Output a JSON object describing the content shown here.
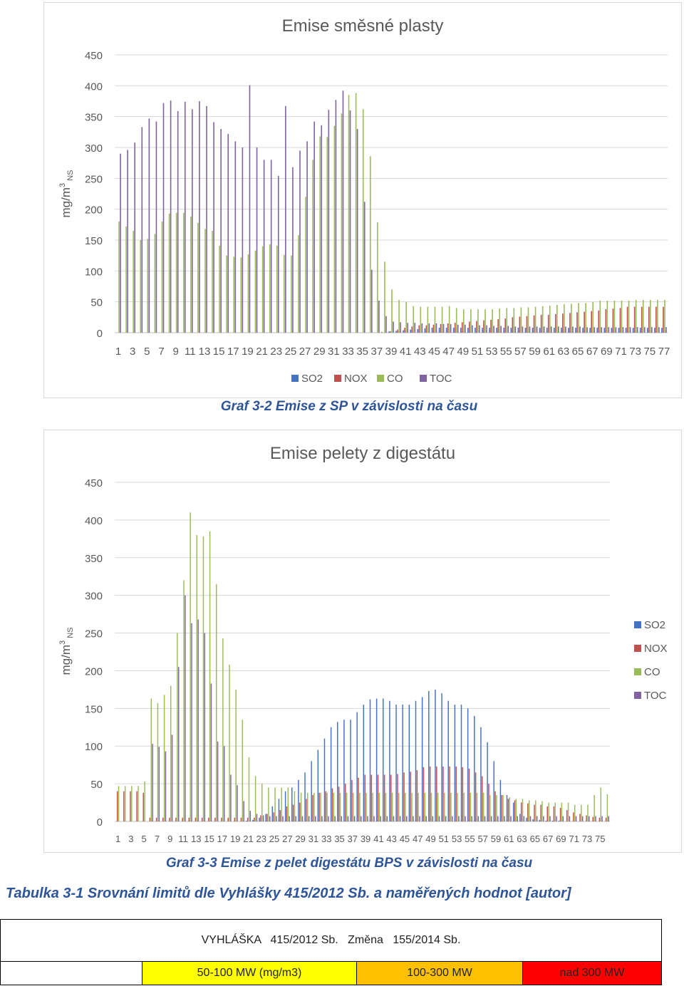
{
  "chart_data": [
    {
      "type": "bar",
      "title": "Emise směsné plasty",
      "ylabel": "mg/m3 NS",
      "ylim": [
        0,
        450
      ],
      "yticks": [
        "0",
        "50",
        "100",
        "150",
        "200",
        "250",
        "300",
        "350",
        "400",
        "450"
      ],
      "x_tick_labels": [
        "1",
        "3",
        "5",
        "7",
        "9",
        "11",
        "13",
        "15",
        "17",
        "19",
        "21",
        "23",
        "25",
        "27",
        "29",
        "31",
        "33",
        "35",
        "37",
        "39",
        "41",
        "43",
        "45",
        "47",
        "49",
        "51",
        "53",
        "55",
        "57",
        "59",
        "61",
        "63",
        "65",
        "67",
        "69",
        "71",
        "73",
        "75",
        "77"
      ],
      "categories": [
        1,
        2,
        3,
        4,
        5,
        6,
        7,
        8,
        9,
        10,
        11,
        12,
        13,
        14,
        15,
        16,
        17,
        18,
        19,
        20,
        21,
        22,
        23,
        24,
        25,
        26,
        27,
        28,
        29,
        30,
        31,
        32,
        33,
        34,
        35,
        36,
        37,
        38,
        39,
        40,
        41,
        42,
        43,
        44,
        45,
        46,
        47,
        48,
        49,
        50,
        51,
        52,
        53,
        54,
        55,
        56,
        57,
        58,
        59,
        60,
        61,
        62,
        63,
        64,
        65,
        66,
        67,
        68,
        69,
        70,
        71,
        72,
        73,
        74,
        75,
        76,
        77
      ],
      "legend_position": "bottom",
      "gridlines": true,
      "series": [
        {
          "name": "SO2",
          "color": "#4472c4",
          "values": [
            0,
            0,
            0,
            0,
            0,
            0,
            0,
            0,
            0,
            0,
            0,
            0,
            0,
            0,
            0,
            0,
            0,
            0,
            0,
            0,
            0,
            0,
            0,
            0,
            0,
            0,
            0,
            0,
            0,
            0,
            0,
            0,
            0,
            0,
            0,
            0,
            0,
            1,
            2,
            3,
            4,
            5,
            6,
            7,
            8,
            8,
            8,
            8,
            8,
            8,
            8,
            8,
            8,
            8,
            8,
            8,
            8,
            8,
            8,
            8,
            8,
            8,
            8,
            8,
            8,
            8,
            8,
            8,
            8,
            8,
            8,
            8,
            8,
            8,
            8,
            8,
            8
          ]
        },
        {
          "name": "NOX",
          "color": "#c0504d",
          "values": [
            0,
            0,
            0,
            0,
            0,
            0,
            0,
            0,
            0,
            0,
            0,
            0,
            0,
            0,
            0,
            0,
            0,
            0,
            0,
            0,
            0,
            0,
            0,
            0,
            0,
            0,
            0,
            0,
            0,
            0,
            0,
            0,
            0,
            0,
            0,
            0,
            0,
            0,
            2,
            5,
            8,
            10,
            12,
            12,
            13,
            14,
            15,
            16,
            17,
            18,
            19,
            20,
            21,
            22,
            23,
            25,
            26,
            27,
            28,
            29,
            29,
            30,
            31,
            32,
            33,
            34,
            35,
            36,
            38,
            39,
            40,
            42,
            42,
            42,
            42,
            42,
            42
          ]
        },
        {
          "name": "CO",
          "color": "#9bbb59",
          "values": [
            180,
            172,
            165,
            150,
            152,
            160,
            180,
            193,
            194,
            194,
            188,
            178,
            168,
            165,
            141,
            125,
            123,
            122,
            127,
            133,
            140,
            143,
            141,
            126,
            125,
            158,
            220,
            280,
            318,
            317,
            335,
            355,
            385,
            388,
            362,
            286,
            179,
            115,
            70,
            53,
            50,
            43,
            42,
            42,
            42,
            42,
            43,
            40,
            38,
            38,
            38,
            38,
            38,
            39,
            40,
            40,
            41,
            41,
            42,
            43,
            44,
            45,
            46,
            47,
            48,
            48,
            50,
            52,
            52,
            52,
            52,
            52,
            53,
            53,
            53,
            53,
            53
          ]
        },
        {
          "name": "TOC",
          "color": "#8064a2",
          "values": [
            290,
            296,
            308,
            333,
            347,
            342,
            372,
            376,
            359,
            374,
            362,
            375,
            367,
            341,
            330,
            322,
            310,
            300,
            401,
            300,
            280,
            280,
            254,
            367,
            268,
            295,
            310,
            342,
            336,
            361,
            377,
            392,
            360,
            330,
            212,
            102,
            52,
            27,
            18,
            17,
            16,
            16,
            15,
            15,
            15,
            14,
            14,
            13,
            13,
            12,
            12,
            12,
            11,
            11,
            11,
            10,
            10,
            10,
            10,
            10,
            10,
            10,
            10,
            10,
            10,
            9,
            9,
            9,
            9,
            9,
            9,
            9,
            9,
            9,
            9,
            9,
            9
          ]
        }
      ]
    },
    {
      "type": "bar",
      "title": "Emise pelety z digestátu",
      "ylabel": "mg/m3 NS",
      "ylim": [
        0,
        450
      ],
      "yticks": [
        "0",
        "50",
        "100",
        "150",
        "200",
        "250",
        "300",
        "350",
        "400",
        "450"
      ],
      "x_tick_labels": [
        "1",
        "3",
        "5",
        "7",
        "9",
        "11",
        "13",
        "15",
        "17",
        "19",
        "21",
        "23",
        "25",
        "27",
        "29",
        "31",
        "33",
        "35",
        "37",
        "39",
        "41",
        "43",
        "45",
        "47",
        "49",
        "51",
        "53",
        "55",
        "57",
        "59",
        "61",
        "63",
        "65",
        "67",
        "69",
        "71",
        "73",
        "75"
      ],
      "categories": [
        1,
        2,
        3,
        4,
        5,
        6,
        7,
        8,
        9,
        10,
        11,
        12,
        13,
        14,
        15,
        16,
        17,
        18,
        19,
        20,
        21,
        22,
        23,
        24,
        25,
        26,
        27,
        28,
        29,
        30,
        31,
        32,
        33,
        34,
        35,
        36,
        37,
        38,
        39,
        40,
        41,
        42,
        43,
        44,
        45,
        46,
        47,
        48,
        49,
        50,
        51,
        52,
        53,
        54,
        55,
        56,
        57,
        58,
        59,
        60,
        61,
        62,
        63,
        64,
        65,
        66,
        67,
        68,
        69,
        70,
        71,
        72,
        73,
        74,
        75,
        76
      ],
      "legend_position": "right",
      "gridlines": true,
      "series": [
        {
          "name": "SO2",
          "color": "#4472c4",
          "values": [
            0,
            0,
            0,
            0,
            0,
            0,
            0,
            0,
            0,
            0,
            0,
            0,
            0,
            0,
            0,
            0,
            0,
            0,
            0,
            0,
            1,
            2,
            5,
            10,
            20,
            30,
            40,
            45,
            55,
            65,
            80,
            95,
            110,
            125,
            132,
            135,
            135,
            145,
            155,
            162,
            163,
            163,
            160,
            155,
            155,
            155,
            160,
            165,
            173,
            175,
            170,
            160,
            155,
            155,
            150,
            140,
            125,
            105,
            80,
            55,
            35,
            25,
            10,
            5,
            3,
            2,
            1,
            1,
            1,
            0,
            0,
            0,
            0,
            0,
            0,
            0
          ]
        },
        {
          "name": "NOX",
          "color": "#c0504d",
          "values": [
            40,
            40,
            40,
            40,
            38,
            5,
            5,
            5,
            5,
            5,
            5,
            5,
            5,
            5,
            5,
            5,
            5,
            5,
            5,
            5,
            5,
            5,
            8,
            10,
            12,
            15,
            20,
            22,
            25,
            30,
            35,
            38,
            40,
            44,
            46,
            50,
            55,
            58,
            62,
            62,
            62,
            62,
            62,
            63,
            65,
            66,
            68,
            72,
            73,
            73,
            73,
            73,
            73,
            72,
            70,
            65,
            60,
            50,
            40,
            35,
            30,
            28,
            25,
            24,
            22,
            22,
            20,
            20,
            18,
            15,
            12,
            10,
            8,
            6,
            5,
            5
          ]
        },
        {
          "name": "CO",
          "color": "#9bbb59",
          "values": [
            47,
            47,
            47,
            47,
            53,
            163,
            157,
            168,
            180,
            250,
            320,
            410,
            380,
            378,
            385,
            315,
            243,
            208,
            175,
            135,
            85,
            60,
            50,
            45,
            45,
            45,
            45,
            40,
            38,
            38,
            38,
            38,
            38,
            38,
            38,
            38,
            38,
            38,
            38,
            38,
            38,
            38,
            38,
            38,
            38,
            38,
            38,
            38,
            38,
            38,
            38,
            38,
            38,
            38,
            38,
            38,
            38,
            35,
            35,
            35,
            32,
            30,
            30,
            28,
            28,
            27,
            25,
            25,
            25,
            25,
            22,
            22,
            22,
            35,
            45,
            36
          ]
        },
        {
          "name": "TOC",
          "color": "#8064a2",
          "values": [
            0,
            0,
            0,
            0,
            0,
            103,
            99,
            93,
            115,
            205,
            300,
            263,
            268,
            250,
            183,
            106,
            100,
            62,
            48,
            27,
            14,
            10,
            8,
            7,
            7,
            7,
            7,
            7,
            7,
            7,
            7,
            7,
            7,
            7,
            7,
            7,
            7,
            7,
            7,
            7,
            7,
            7,
            7,
            7,
            7,
            7,
            7,
            7,
            7,
            7,
            7,
            7,
            7,
            7,
            7,
            7,
            7,
            7,
            7,
            7,
            7,
            7,
            7,
            7,
            7,
            7,
            7,
            7,
            7,
            7,
            7,
            7,
            7,
            7,
            7,
            7
          ]
        }
      ]
    }
  ],
  "captions": {
    "chart1": "Graf 3-2 Emise z SP v závislosti na času",
    "chart2": "Graf 3-3 Emise z pelet digestátu BPS v závislosti na času",
    "table": "Tabulka 3-1 Srovnání limitů dle Vyhlášky 415/2012 Sb. a naměřených hodnot [autor]"
  },
  "table": {
    "header": "VYHLÁŠKA   415/2012 Sb.   Změna   155/2014 Sb.",
    "bands": [
      {
        "label": "",
        "color": "#ffffff"
      },
      {
        "label": "50-100 MW (mg/m3)",
        "color": "#ffff00"
      },
      {
        "label": "100-300 MW",
        "color": "#ffc000"
      },
      {
        "label": "nad 300 MW",
        "color": "#ff0000"
      }
    ]
  }
}
